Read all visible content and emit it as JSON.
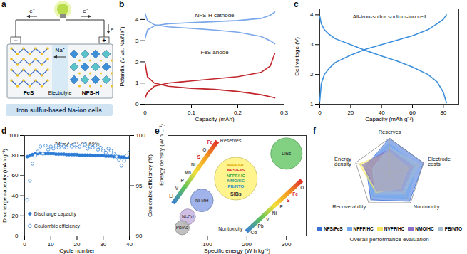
{
  "diagram": {
    "panel": "a",
    "anode": "FeS",
    "cathode": "NFS-H",
    "electrolyte": "Electrolyte",
    "ion": "Na⁺",
    "electrons": [
      "e⁻",
      "e⁻",
      "e⁻"
    ],
    "terminals": [
      "−",
      "+"
    ],
    "caption": "Iron sulfur-based Na-ion cells"
  },
  "chart_data": [
    {
      "panel": "b",
      "type": "line",
      "x_label": "Capacity (mAh)",
      "y_label": "Potential (V vs. Na/Na⁺)",
      "xlim": [
        0,
        0.3
      ],
      "xticks": [
        0,
        0.1,
        0.2,
        0.3
      ],
      "ylim": [
        0,
        4.5
      ],
      "yticks": [
        0,
        1,
        2,
        3,
        4
      ],
      "series": [
        {
          "name": "NFS-H cathode",
          "color": "#7aa6ea",
          "curves": [
            {
              "x": [
                0,
                0.005,
                0.02,
                0.05,
                0.1,
                0.15,
                0.2,
                0.25,
                0.27,
                0.28
              ],
              "values": [
                3.1,
                3.5,
                3.7,
                3.8,
                3.85,
                3.9,
                3.95,
                4.05,
                4.2,
                4.35
              ]
            },
            {
              "x": [
                0,
                0.005,
                0.02,
                0.05,
                0.1,
                0.15,
                0.2,
                0.25,
                0.27,
                0.28
              ],
              "values": [
                4.3,
                3.95,
                3.75,
                3.65,
                3.58,
                3.5,
                3.4,
                3.2,
                3.0,
                2.85
              ]
            }
          ]
        },
        {
          "name": "FeS anode",
          "color": "#c0262b",
          "curves": [
            {
              "x": [
                0,
                0.005,
                0.02,
                0.05,
                0.1,
                0.15,
                0.2,
                0.25,
                0.27,
                0.28
              ],
              "values": [
                1.95,
                1.3,
                1.0,
                0.85,
                0.75,
                0.7,
                0.6,
                0.45,
                0.35,
                0.3
              ]
            },
            {
              "x": [
                0,
                0.005,
                0.02,
                0.05,
                0.1,
                0.15,
                0.2,
                0.25,
                0.27,
                0.28
              ],
              "values": [
                0.3,
                0.55,
                0.85,
                1.0,
                1.1,
                1.2,
                1.3,
                1.5,
                1.8,
                2.4
              ]
            }
          ]
        }
      ]
    },
    {
      "panel": "c",
      "type": "line",
      "x_label": "Capacity (mAh g⁻¹)",
      "y_label": "Cell voltage (V)",
      "annotation": "All-iron-sulfur sodium-ion cell",
      "xlim": [
        0,
        90
      ],
      "xticks": [
        0,
        20,
        40,
        60,
        80
      ],
      "ylim": [
        1,
        4.2
      ],
      "yticks": [
        1,
        2,
        3,
        4
      ],
      "series": [
        {
          "color": "#3b8fdc",
          "curves": [
            {
              "x": [
                0,
                1,
                3,
                6,
                10,
                20,
                30,
                40,
                50,
                60,
                70,
                76,
                80,
                82
              ],
              "values": [
                1.1,
                1.7,
                2.0,
                2.2,
                2.4,
                2.65,
                2.85,
                3.0,
                3.15,
                3.3,
                3.5,
                3.7,
                3.85,
                4.0
              ]
            },
            {
              "x": [
                0,
                1,
                3,
                6,
                10,
                20,
                30,
                40,
                50,
                60,
                70,
                76,
                80,
                82
              ],
              "values": [
                3.95,
                3.7,
                3.5,
                3.35,
                3.2,
                3.0,
                2.8,
                2.62,
                2.45,
                2.25,
                2.0,
                1.75,
                1.4,
                1.05
              ]
            }
          ]
        }
      ]
    },
    {
      "panel": "d",
      "type": "scatter",
      "x_label": "Cycle number",
      "y_label": "Discharge capacity (mAh g⁻¹)",
      "y2_label": "Coulombic efficiency (%)",
      "annotation": "24 mA g⁻¹, 96.69%",
      "xlim": [
        0,
        40
      ],
      "xticks": [
        0,
        10,
        20,
        30,
        40
      ],
      "ylim": [
        0,
        100
      ],
      "yticks": [
        0,
        20,
        40,
        60,
        80,
        100
      ],
      "y2lim": [
        90,
        100
      ],
      "y2ticks": [
        90,
        95,
        100
      ],
      "legend": "bottom-left",
      "x": [
        1,
        2,
        3,
        4,
        5,
        6,
        7,
        8,
        9,
        10,
        11,
        12,
        13,
        14,
        15,
        16,
        17,
        18,
        19,
        20,
        21,
        22,
        23,
        24,
        25,
        26,
        27,
        28,
        29,
        30,
        31,
        32,
        33,
        34,
        35,
        36,
        37,
        38,
        39,
        40
      ],
      "series": [
        {
          "name": "Discharge capacity",
          "color": "#2b7bd6",
          "marker": "filled",
          "values": [
            79,
            80,
            81,
            82,
            82,
            82.5,
            82,
            82,
            82,
            82,
            82,
            81.5,
            81.5,
            81.5,
            81.5,
            81,
            81,
            81,
            81,
            81,
            80.5,
            80.5,
            80.5,
            80.5,
            80.5,
            80,
            80,
            80,
            80,
            80,
            79.5,
            79.5,
            79.5,
            79,
            79,
            79,
            78.5,
            78.5,
            78,
            78
          ]
        },
        {
          "name": "Coulombic efficiency",
          "color": "#4a90d9",
          "marker": "open",
          "axis": "y2",
          "values": [
            93.6,
            95.5,
            97.2,
            98.0,
            98.4,
            98.9,
            98.2,
            99.0,
            98.6,
            98.9,
            98.7,
            99.0,
            98.8,
            99.1,
            98.9,
            98.8,
            99.0,
            98.9,
            99.1,
            98.8,
            98.9,
            99.0,
            99.1,
            98.7,
            98.9,
            98.8,
            99.0,
            98.6,
            98.8,
            98.5,
            98.3,
            98.7,
            98.5,
            98.2,
            97.9,
            97.6,
            97.0,
            97.5,
            98.0,
            98.3
          ]
        }
      ]
    },
    {
      "panel": "e",
      "type": "bubble",
      "x_label": "Specific energy (W h kg⁻¹)",
      "y_label": "Energy density (W h L⁻¹)",
      "xlim": [
        0,
        350
      ],
      "xticks": [
        100,
        200,
        300
      ],
      "ylim": [
        0,
        1000
      ],
      "tick_labels": "x",
      "bubbles": [
        {
          "name": "Pb/Ac",
          "x": 36,
          "y": 82,
          "size": 10,
          "color": "#b5b5b5"
        },
        {
          "name": "Ni-Cd",
          "x": 50,
          "y": 190,
          "size": 11,
          "color": "#c8b4e0"
        },
        {
          "name": "Ni-MH",
          "x": 86,
          "y": 354,
          "size": 16,
          "color": "#8fa6e6"
        },
        {
          "name": "SIBs",
          "x": 172,
          "y": 571,
          "size": 30,
          "color": "#fff27a",
          "members": {
            "names": [
              "NVPF/HC",
              "NFS/FeS",
              "NFPF/HC",
              "NMO/HC",
              "PB/NTO"
            ],
            "colors": [
              "#d9a400",
              "#d4202a",
              "#3aa845",
              "#3f9f86",
              "#2a8fc4"
            ]
          }
        },
        {
          "name": "LIBs",
          "x": 300,
          "y": 820,
          "size": 22,
          "color": "#6cc86c"
        }
      ],
      "element_scales": [
        {
          "name": "Reserves",
          "elements": [
            "Fe",
            "O",
            "S",
            "Ni",
            "Mn",
            "P",
            "V",
            "Li"
          ],
          "colors": [
            "#d4202a",
            "#555555",
            "#d4202a",
            "#555555",
            "#555555",
            "#555555",
            "#555555",
            "#555555"
          ]
        },
        {
          "name": "Nontoxicity",
          "elements": [
            "O",
            "Fe",
            "S",
            "P",
            "Ni",
            "V",
            "Pb",
            "Cd"
          ],
          "colors": [
            "#555555",
            "#d4202a",
            "#d4202a",
            "#555555",
            "#555555",
            "#555555",
            "#555555",
            "#555555"
          ]
        }
      ]
    },
    {
      "panel": "f",
      "type": "radar",
      "title": "Overall performance evaluation",
      "legend": "bottom",
      "axes": [
        "Reserves",
        "Electrode costs",
        "Nontoxicity",
        "Recoverability",
        "Energy density"
      ],
      "ylim": [
        0,
        1
      ],
      "series": [
        {
          "name": "NFS/FeS",
          "color": "#3a6fd8",
          "values": [
            1.0,
            1.0,
            0.95,
            0.9,
            0.7
          ]
        },
        {
          "name": "NFPF/HC",
          "color": "#6fa8ef",
          "values": [
            0.85,
            0.8,
            0.85,
            0.8,
            0.75
          ]
        },
        {
          "name": "NVPF/HC",
          "color": "#f5e663",
          "values": [
            0.6,
            0.55,
            0.5,
            0.65,
            0.9
          ]
        },
        {
          "name": "NMO/HC",
          "color": "#8a6fc8",
          "values": [
            0.7,
            0.7,
            0.6,
            0.6,
            0.8
          ]
        },
        {
          "name": "PB/NTO",
          "color": "#a8bcd0",
          "values": [
            0.75,
            0.85,
            0.7,
            0.7,
            0.5
          ]
        }
      ]
    }
  ]
}
